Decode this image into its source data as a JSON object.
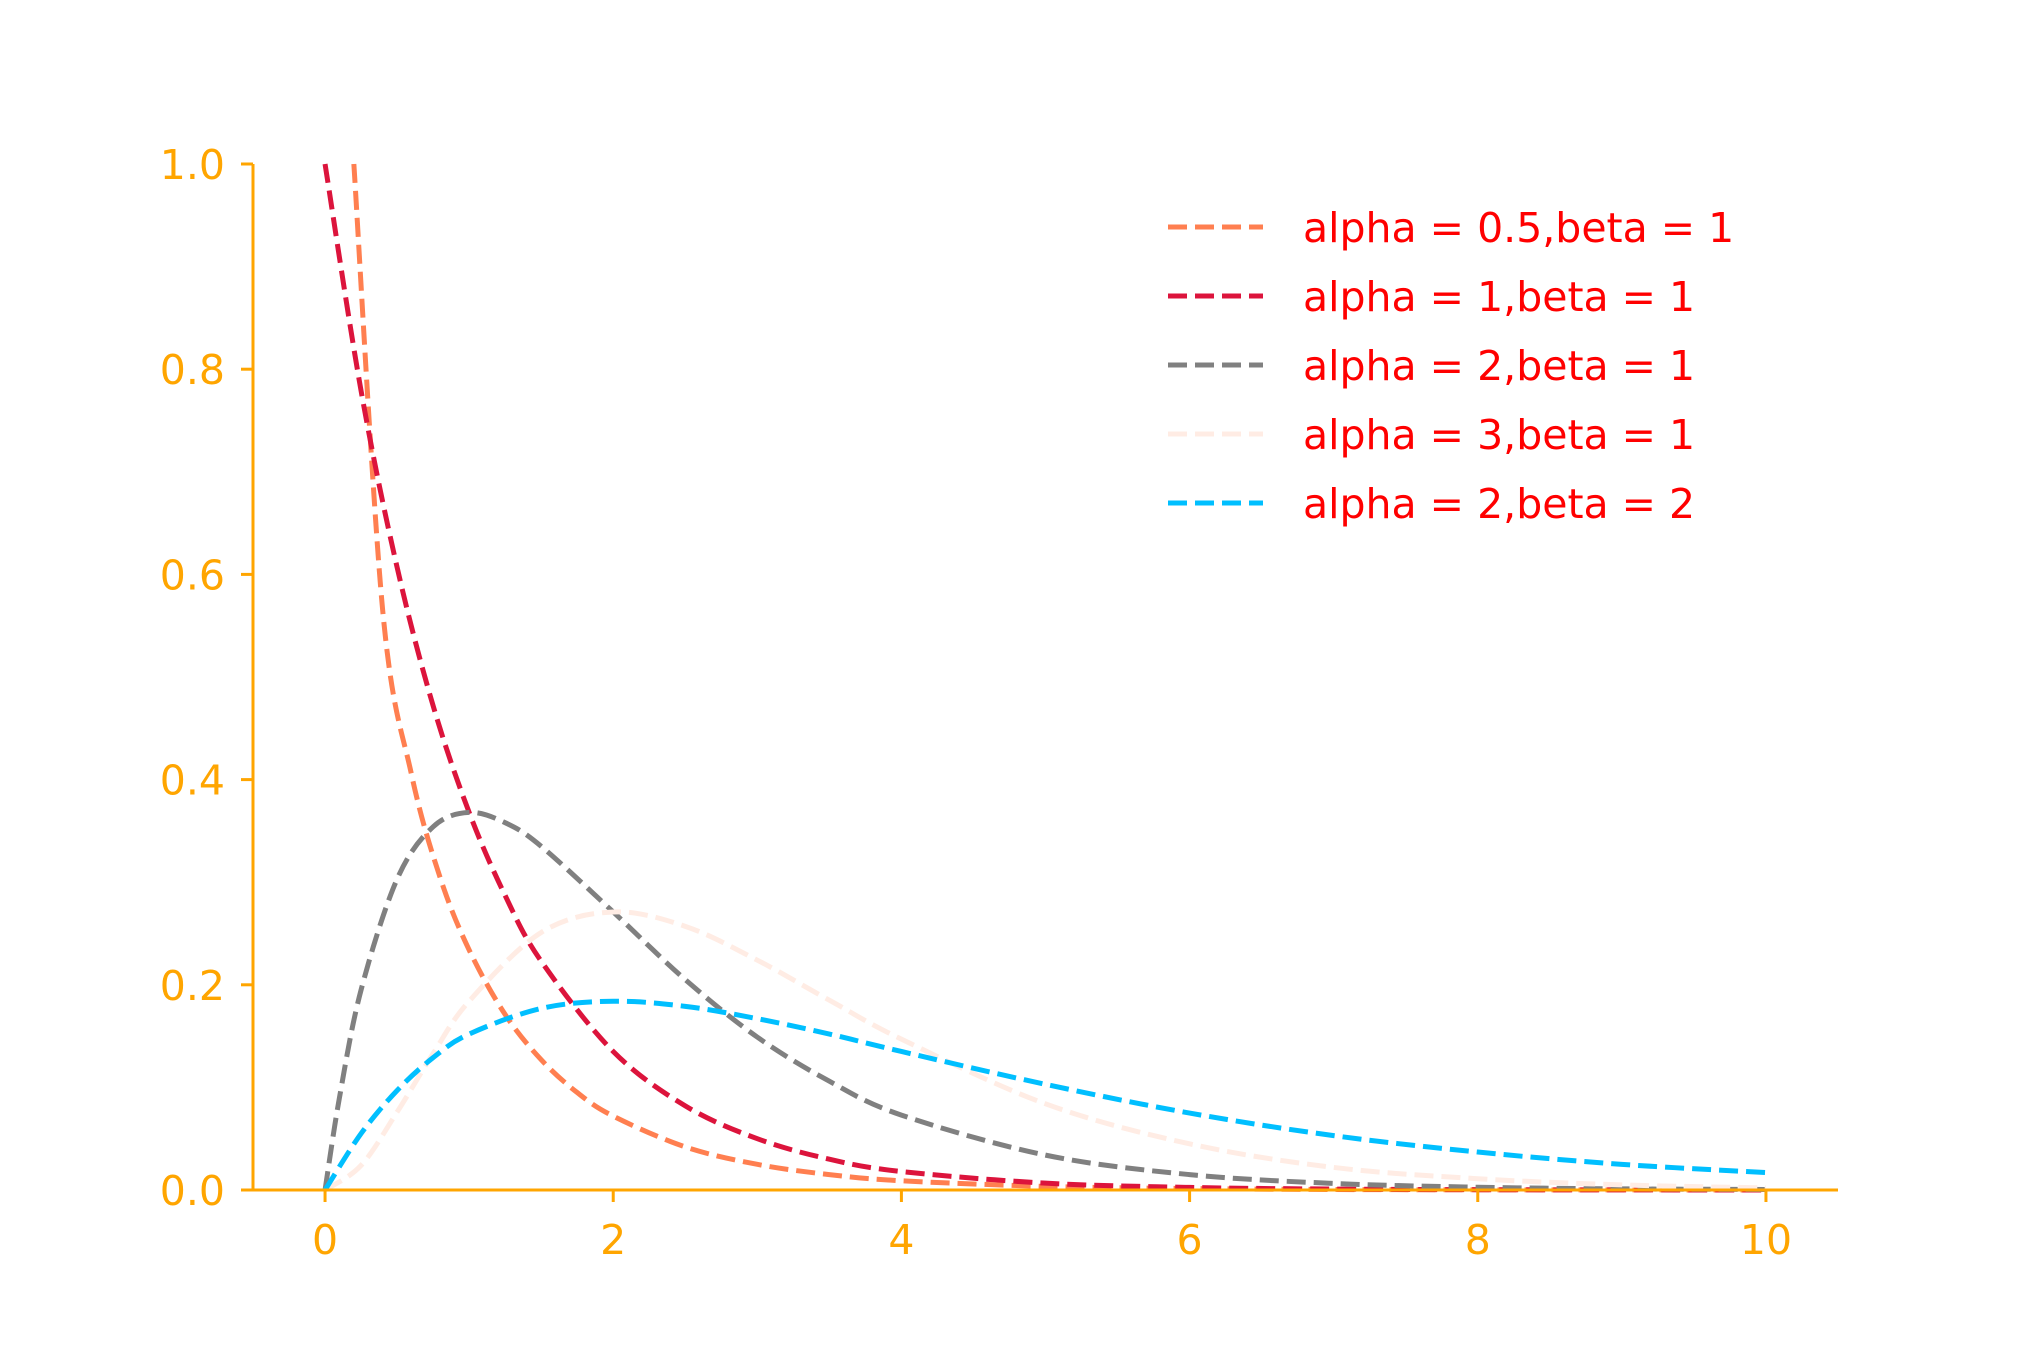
{
  "chart_data": {
    "type": "line",
    "title": "",
    "xlabel": "",
    "ylabel": "",
    "xlim": [
      -0.5,
      10.5
    ],
    "ylim": [
      0,
      1.0
    ],
    "xticks": [
      0,
      2,
      4,
      6,
      8,
      10
    ],
    "xtick_labels": [
      "0",
      "2",
      "4",
      "6",
      "8",
      "10"
    ],
    "yticks": [
      0.0,
      0.2,
      0.4,
      0.6,
      0.8,
      1.0
    ],
    "ytick_labels": [
      "0.0",
      "0.2",
      "0.4",
      "0.6",
      "0.8",
      "1.0"
    ],
    "axis_color": "#ffa500",
    "legend_text_color": "#ff0000",
    "legend_position": "top-right",
    "grid": false,
    "series": [
      {
        "name": "alpha = 0.5,beta = 1",
        "color": "#ff7f50",
        "line_style": "dashed",
        "x": [
          0.2,
          0.4,
          0.6,
          0.8,
          1,
          1.25,
          1.5,
          1.75,
          2,
          2.5,
          3,
          3.5,
          4,
          5,
          6,
          7,
          8,
          9,
          10
        ],
        "y": [
          1.0,
          0.565,
          0.405,
          0.304,
          0.234,
          0.171,
          0.127,
          0.095,
          0.072,
          0.042,
          0.025,
          0.015,
          0.009,
          0.0035,
          0.0014,
          0.0005,
          0.0002,
          0.0001,
          0.0
        ]
      },
      {
        "name": "alpha = 1,beta = 1",
        "color": "#dc143c",
        "line_style": "dashed",
        "x": [
          0,
          0.25,
          0.5,
          0.75,
          1,
          1.25,
          1.5,
          2,
          2.5,
          3,
          3.5,
          4,
          5,
          6,
          7,
          8,
          9,
          10
        ],
        "y": [
          1.0,
          0.779,
          0.607,
          0.472,
          0.368,
          0.287,
          0.223,
          0.135,
          0.082,
          0.05,
          0.03,
          0.018,
          0.0067,
          0.0025,
          0.0009,
          0.0003,
          0.0001,
          0.0
        ]
      },
      {
        "name": "alpha = 2,beta = 1",
        "color": "#808080",
        "line_style": "dashed",
        "x": [
          0,
          0.1,
          0.25,
          0.5,
          0.75,
          1,
          1.25,
          1.5,
          2,
          2.5,
          3,
          3.5,
          4,
          5,
          6,
          7,
          8,
          9,
          10
        ],
        "y": [
          0.0,
          0.09,
          0.195,
          0.303,
          0.354,
          0.368,
          0.358,
          0.335,
          0.271,
          0.205,
          0.149,
          0.106,
          0.073,
          0.034,
          0.015,
          0.0064,
          0.0027,
          0.0011,
          0.0005
        ]
      },
      {
        "name": "alpha = 3,beta = 1",
        "color": "#ffece4",
        "line_style": "dashed",
        "x": [
          0,
          0.25,
          0.5,
          0.75,
          1,
          1.5,
          2,
          2.5,
          3,
          3.5,
          4,
          5,
          6,
          7,
          8,
          9,
          10
        ],
        "y": [
          0.0,
          0.024,
          0.076,
          0.133,
          0.184,
          0.251,
          0.271,
          0.257,
          0.224,
          0.185,
          0.147,
          0.084,
          0.045,
          0.022,
          0.011,
          0.005,
          0.002
        ]
      },
      {
        "name": "alpha = 2,beta = 2",
        "color": "#00bfff",
        "line_style": "dashed",
        "x": [
          0,
          0.25,
          0.5,
          0.75,
          1,
          1.5,
          2,
          2.5,
          3,
          3.5,
          4,
          5,
          6,
          7,
          8,
          9,
          10
        ],
        "y": [
          0.0,
          0.055,
          0.097,
          0.129,
          0.152,
          0.177,
          0.184,
          0.179,
          0.167,
          0.152,
          0.135,
          0.103,
          0.075,
          0.053,
          0.037,
          0.025,
          0.017
        ]
      }
    ]
  }
}
